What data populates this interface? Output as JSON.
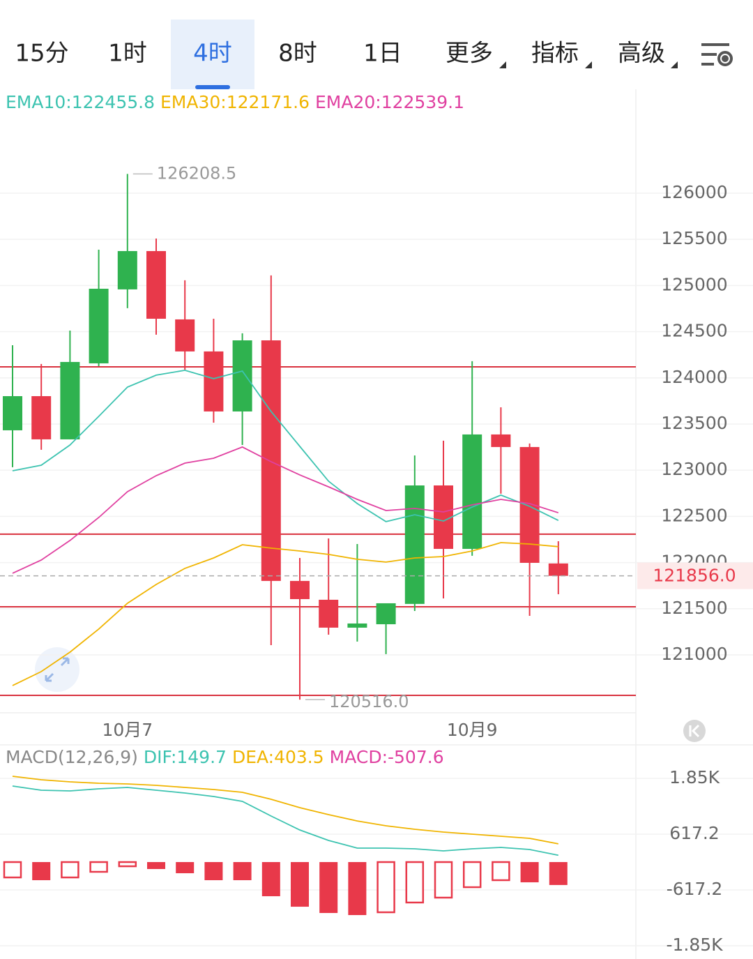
{
  "tabs": [
    "15分",
    "1时",
    "4时",
    "8时",
    "1日",
    "更多",
    "指标",
    "高级"
  ],
  "selected_tab": 2,
  "chart_data": [
    {
      "type": "candlestick",
      "categories": [
        null,
        null,
        null,
        null,
        "10月7",
        null,
        null,
        null,
        null,
        null,
        null,
        null,
        null,
        null,
        null,
        null,
        "10月9",
        null,
        null,
        null
      ],
      "open": [
        123432,
        123802,
        123334,
        124157,
        124958,
        125373,
        124633,
        124286,
        123636,
        124406,
        121801,
        121597,
        121295,
        121332,
        121552,
        122835,
        122148,
        123387,
        123251,
        121990
      ],
      "high": [
        124353,
        124150,
        124512,
        125388,
        126208.5,
        125509,
        125056,
        124640,
        124482,
        125109,
        122050,
        122261,
        122201,
        121559,
        123160,
        123319,
        124180,
        123681,
        123289,
        122231
      ],
      "low": [
        123032,
        123221,
        123334,
        124127,
        124754,
        124467,
        124089,
        123515,
        123273,
        121106,
        120516,
        121219,
        121144,
        121008,
        121476,
        121612,
        122073,
        122745,
        121423,
        121657
      ],
      "close": [
        123802,
        123334,
        124172,
        124965,
        125373,
        124640,
        124286,
        123636,
        124406,
        121801,
        121604,
        121295,
        121340,
        121559,
        122835,
        122148,
        123387,
        123251,
        121997,
        121856
      ],
      "up_color": "#2fb24f",
      "down_color": "#e8394a",
      "series": [
        {
          "legend": "EMA10:122455.8",
          "color": "#3cc3b0",
          "values": [
            122994,
            123054,
            123273,
            123583,
            123900,
            124029,
            124082,
            123991,
            124074,
            123636,
            123258,
            122881,
            122639,
            122443,
            122518,
            122450,
            122601,
            122730,
            122609,
            122456
          ]
        },
        {
          "legend": "EMA30:122171.6",
          "color": "#f0b400",
          "values": [
            120668,
            120819,
            121030,
            121280,
            121559,
            121763,
            121937,
            122050,
            122193,
            122156,
            122125,
            122088,
            122035,
            122005,
            122050,
            122065,
            122125,
            122216,
            122201,
            122172
          ]
        },
        {
          "legend": "EMA20:122539.1",
          "color": "#e040a0",
          "values": [
            121884,
            122027,
            122239,
            122488,
            122767,
            122941,
            123077,
            123130,
            123251,
            123092,
            122949,
            122820,
            122684,
            122563,
            122586,
            122548,
            122624,
            122684,
            122639,
            122539
          ]
        }
      ],
      "high_mark": 126208.5,
      "low_mark": {
        "value": 120516,
        "label": "120516.0"
      },
      "levels": [
        124119,
        122307,
        121521,
        120562
      ],
      "level_color": "#d9313e",
      "price": {
        "value": 121856,
        "label": "121856.0"
      },
      "ylim": [
        120373,
        127072
      ],
      "yticks": [
        126000,
        125500,
        125000,
        124500,
        124000,
        123500,
        123000,
        122500,
        122000,
        121500,
        121000
      ],
      "grid": true
    },
    {
      "type": "bar",
      "title": "MACD(12,26,9)",
      "legend": "MACD:-507.6",
      "legend_color": "#e040a0",
      "values": [
        -340,
        -401,
        -340,
        -216,
        -93,
        -154,
        -247,
        -401,
        -401,
        -756,
        -988,
        -1127,
        -1173,
        -1111,
        -895,
        -787,
        -556,
        -401,
        -448,
        -507.6
      ],
      "hollow": [
        true,
        false,
        true,
        true,
        true,
        false,
        false,
        false,
        false,
        false,
        false,
        false,
        false,
        true,
        true,
        true,
        true,
        true,
        false,
        false
      ],
      "color": "#e8394a",
      "series": [
        {
          "legend": "DIF:149.7",
          "color": "#3cc3b0",
          "values": [
            1682,
            1590,
            1574,
            1620,
            1651,
            1590,
            1528,
            1451,
            1343,
            1019,
            710,
            478,
            309,
            309,
            293,
            247,
            293,
            324,
            278,
            149.7
          ]
        },
        {
          "legend": "DEA:403.5",
          "color": "#f0b400",
          "values": [
            1898,
            1821,
            1775,
            1744,
            1728,
            1698,
            1651,
            1605,
            1543,
            1389,
            1204,
            1049,
            910,
            802,
            725,
            664,
            617,
            571,
            525,
            403.5
          ]
        }
      ],
      "ylim": [
        -2145,
        2593
      ],
      "yticks": [
        {
          "value": 1851.6,
          "label": "1.85K"
        },
        617.2,
        -617.2,
        {
          "value": -1851.6,
          "label": "-1.85K"
        }
      ],
      "grid": true
    }
  ]
}
